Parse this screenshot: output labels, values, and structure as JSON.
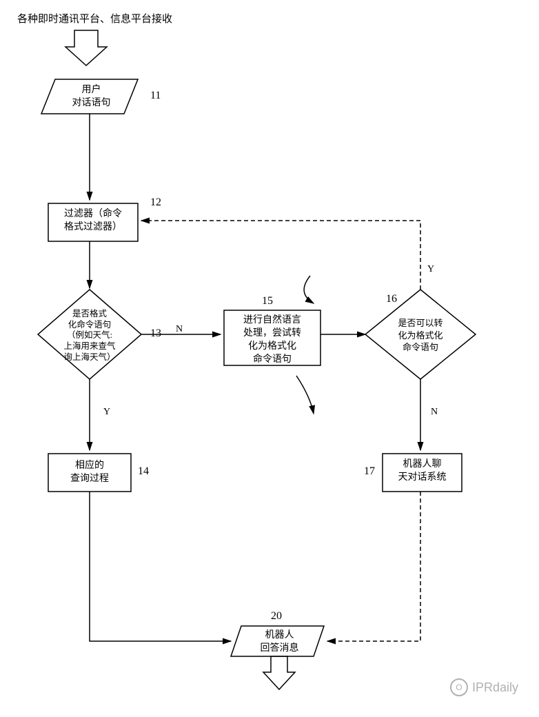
{
  "title": "各种即时通讯平台、信息平台接收",
  "nodes": {
    "n11": {
      "text": "用户\n对话语句",
      "label": "11"
    },
    "n12": {
      "text": "过滤器（命令\n格式过滤器）",
      "label": "12"
    },
    "n13": {
      "text": "是否格式\n化命令语句\n（例如天气:\n上海用来查气\n询上海天气）",
      "label": "13"
    },
    "n14": {
      "text": "相应的\n查询过程",
      "label": "14"
    },
    "n15": {
      "text": "进行自然语言\n处理，尝试转\n化为格式化\n命令语句",
      "label": "15"
    },
    "n16": {
      "text": "是否可以转\n化为格式化\n命令语句",
      "label": "16"
    },
    "n17": {
      "text": "机器人聊\n天对话系统",
      "label": "17"
    },
    "n20": {
      "text": "机器人\n回答消息",
      "label": "20"
    }
  },
  "edges": {
    "e13_y": "Y",
    "e13_n": "N",
    "e16_y": "Y",
    "e16_n": "N"
  },
  "style": {
    "stroke": "#000000",
    "stroke_width": 1.5,
    "fontsize": 14,
    "background": "#ffffff"
  },
  "watermark": {
    "text": "IPRdaily",
    "icon": "O"
  }
}
